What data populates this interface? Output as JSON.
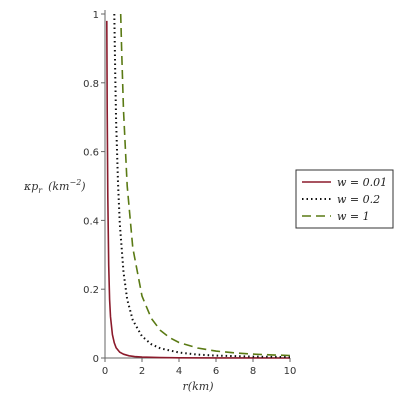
{
  "chart_data": {
    "type": "line",
    "xlabel": "r(km)",
    "ylabel": "κp_r (km^-2)",
    "xlim": [
      0,
      10
    ],
    "ylim": [
      0,
      1
    ],
    "x_ticks": [
      "0",
      "2",
      "4",
      "6",
      "8",
      "10"
    ],
    "y_ticks": [
      "0",
      "0.2",
      "0.4",
      "0.6",
      "0.8",
      "1"
    ],
    "legend_position": "right",
    "series": [
      {
        "name": "w = 0.01",
        "color": "#8b1a2b",
        "style": "solid",
        "x": [
          0.1,
          0.12,
          0.15,
          0.2,
          0.25,
          0.3,
          0.4,
          0.5,
          0.6,
          0.8,
          1.0,
          1.3,
          1.6,
          2.0,
          3.0,
          4.0,
          6.0,
          8.0,
          10.0
        ],
        "y": [
          0.98,
          0.72,
          0.47,
          0.27,
          0.17,
          0.12,
          0.068,
          0.044,
          0.03,
          0.017,
          0.011,
          0.0065,
          0.004,
          0.0027,
          0.0012,
          0.0007,
          0.0003,
          0.0002,
          0.0001
        ]
      },
      {
        "name": "w = 0.2",
        "color": "#111111",
        "style": "dotted",
        "x": [
          0.5,
          0.55,
          0.6,
          0.7,
          0.8,
          1.0,
          1.2,
          1.5,
          2.0,
          2.5,
          3.0,
          4.0,
          5.0,
          6.0,
          8.0,
          10.0
        ],
        "y": [
          1.0,
          0.83,
          0.69,
          0.51,
          0.39,
          0.25,
          0.17,
          0.11,
          0.063,
          0.04,
          0.028,
          0.016,
          0.01,
          0.007,
          0.004,
          0.0025
        ]
      },
      {
        "name": "w = 1",
        "color": "#5a7a14",
        "style": "dashed",
        "x": [
          0.85,
          0.9,
          1.0,
          1.2,
          1.5,
          2.0,
          2.5,
          3.0,
          3.5,
          4.0,
          5.0,
          6.0,
          7.0,
          8.0,
          9.0,
          10.0
        ],
        "y": [
          1.0,
          0.89,
          0.72,
          0.5,
          0.32,
          0.18,
          0.115,
          0.08,
          0.059,
          0.045,
          0.029,
          0.02,
          0.0147,
          0.0113,
          0.0089,
          0.0072
        ]
      }
    ]
  }
}
